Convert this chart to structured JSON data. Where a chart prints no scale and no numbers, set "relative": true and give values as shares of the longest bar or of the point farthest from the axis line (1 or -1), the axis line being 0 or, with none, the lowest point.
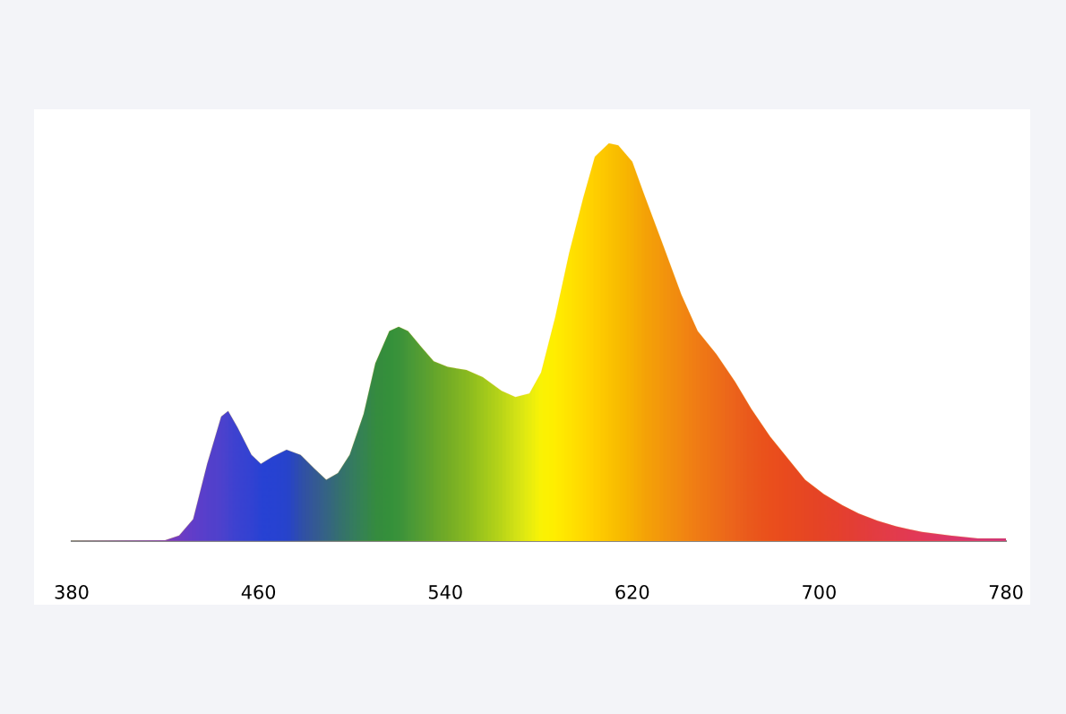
{
  "chart_data": {
    "type": "area",
    "relative": true,
    "xlim": [
      380,
      780
    ],
    "xticks": [
      380,
      460,
      540,
      620,
      700,
      780
    ],
    "grid": false,
    "legend": false,
    "series": [
      {
        "x": [
          380,
          420,
          426,
          432,
          438,
          444,
          447,
          451,
          457,
          461,
          466,
          472,
          478,
          484,
          489,
          494,
          499,
          505,
          510,
          516,
          520,
          524,
          530,
          535,
          541,
          549,
          556,
          564,
          570,
          576,
          581,
          587,
          593,
          599,
          604,
          610,
          614,
          620,
          625,
          633,
          641,
          648,
          656,
          664,
          671,
          679,
          687,
          694,
          702,
          710,
          717,
          725,
          733,
          744,
          756,
          768,
          780
        ],
        "values": [
          0,
          0.002,
          0.014,
          0.055,
          0.194,
          0.313,
          0.327,
          0.286,
          0.217,
          0.194,
          0.212,
          0.23,
          0.217,
          0.182,
          0.154,
          0.171,
          0.217,
          0.32,
          0.447,
          0.528,
          0.539,
          0.528,
          0.486,
          0.452,
          0.438,
          0.43,
          0.412,
          0.378,
          0.362,
          0.371,
          0.424,
          0.562,
          0.724,
          0.862,
          0.966,
          1,
          0.995,
          0.954,
          0.873,
          0.747,
          0.62,
          0.528,
          0.47,
          0.401,
          0.332,
          0.263,
          0.205,
          0.154,
          0.118,
          0.09,
          0.069,
          0.051,
          0.037,
          0.023,
          0.014,
          0.007,
          0.007
        ],
        "colors": [
          "#6a2ad8",
          "#6a2ad8",
          "#5a2ae0",
          "#4a2ce6",
          "#3e2ee8",
          "#3530ea",
          "#2a30ec",
          "#2030ee",
          "#1530f0",
          "#0a30f2",
          "#0a30f0",
          "#0a32e8",
          "#1440c0",
          "#1a4ca8",
          "#1a5896",
          "#1a6480",
          "#1a7070",
          "#1a7c5c",
          "#1a8448",
          "#1a8a44",
          "#208c42",
          "#2e9240",
          "#409a3a",
          "#50a232",
          "#62aa2c",
          "#78b826",
          "#92c820",
          "#b0d81c",
          "#cce61a",
          "#e4f212",
          "#fafa06",
          "#fff400",
          "#ffe800",
          "#ffdc00",
          "#ffd000",
          "#fcc400",
          "#f8bc00",
          "#f6ae04",
          "#f4a008",
          "#f2900e",
          "#f08014",
          "#ee7218",
          "#ec641c",
          "#ea5620",
          "#e84a20",
          "#e84020",
          "#e63a24",
          "#e43628",
          "#e2322e",
          "#e22e36",
          "#e02c40",
          "#e02a4c",
          "#e02858",
          "#de2666",
          "#d82476",
          "#d02284",
          "#c82090"
        ]
      }
    ]
  }
}
